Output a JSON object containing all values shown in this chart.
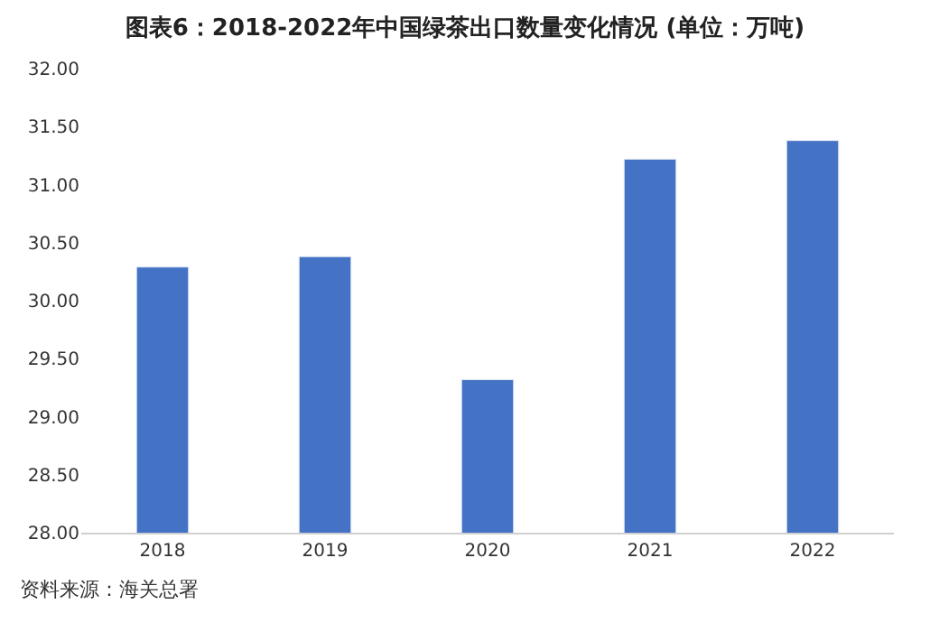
{
  "chart_data": {
    "type": "bar",
    "title": "图表6：2018-2022年中国绿茶出口数量变化情况 (单位：万吨)",
    "categories": [
      "2018",
      "2019",
      "2020",
      "2021",
      "2022"
    ],
    "values": [
      30.29,
      30.38,
      29.32,
      31.22,
      31.38
    ],
    "color": "#4472c4",
    "ylim": [
      28,
      32
    ],
    "yticks": [
      {
        "value": 28,
        "label": "28.00"
      },
      {
        "value": 28.5,
        "label": "28.50"
      },
      {
        "value": 29,
        "label": "29.00"
      },
      {
        "value": 29.5,
        "label": "29.50"
      },
      {
        "value": 30,
        "label": "30.00"
      },
      {
        "value": 30.5,
        "label": "30.50"
      },
      {
        "value": 31,
        "label": "31.00"
      },
      {
        "value": 31.5,
        "label": "31.50"
      },
      {
        "value": 32,
        "label": "32.00"
      }
    ],
    "grid": false,
    "annotations": [
      "资料来源：海关总署"
    ]
  }
}
